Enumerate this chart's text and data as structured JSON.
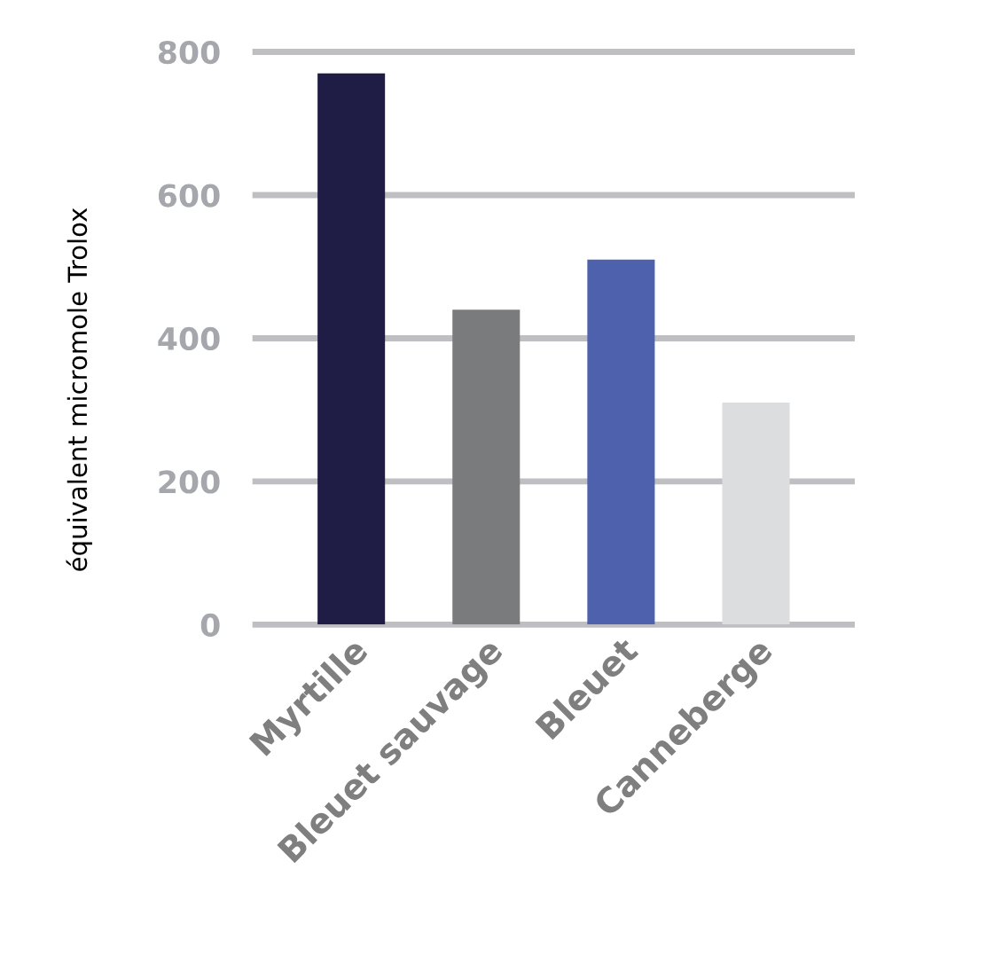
{
  "chart_data": {
    "type": "bar",
    "ylabel": "équivalent micromole Trolox",
    "categories": [
      "Myrtille",
      "Bleuet sauvage",
      "Bleuet",
      "Canneberge"
    ],
    "values": [
      770,
      440,
      510,
      310
    ],
    "colors": [
      "#1f1d45",
      "#7a7b7d",
      "#4e61ad",
      "#dcdddf"
    ],
    "ylim": [
      0,
      800
    ],
    "yticks": [
      0,
      200,
      400,
      600,
      800
    ],
    "grid": "y"
  }
}
